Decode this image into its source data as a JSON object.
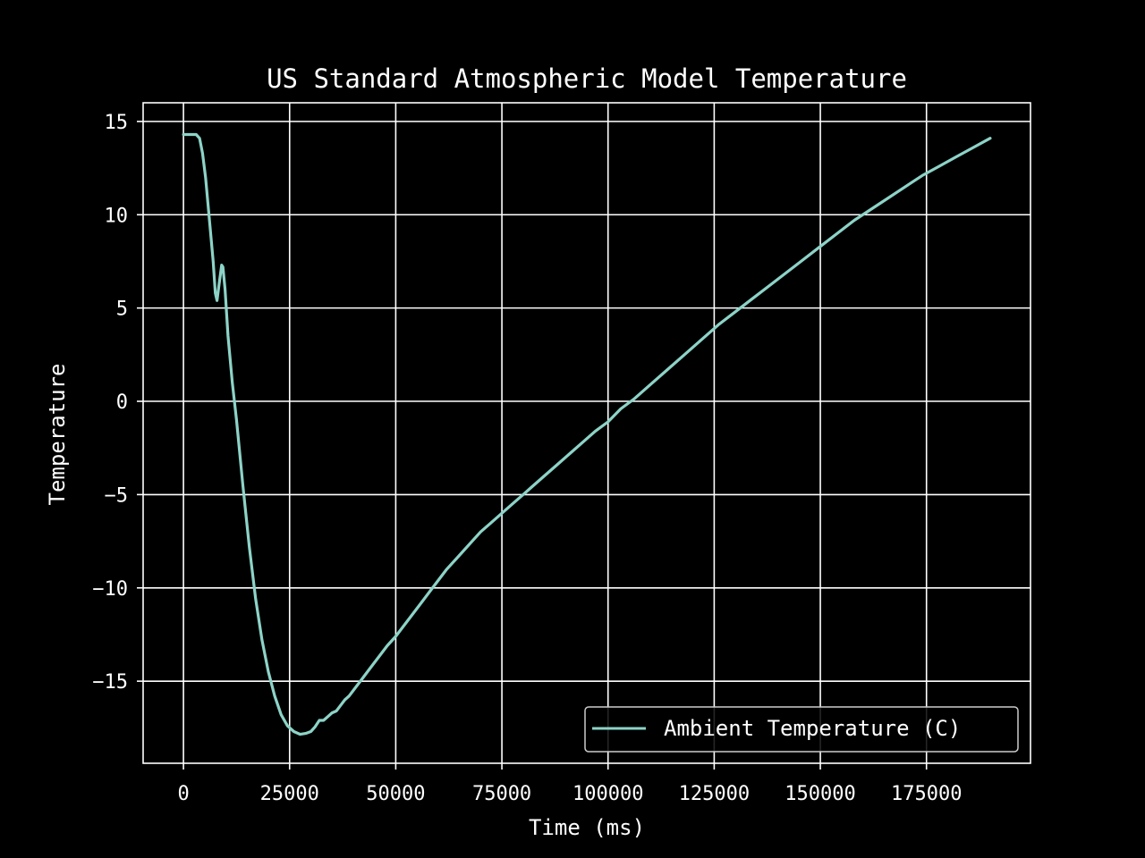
{
  "chart_data": {
    "type": "line",
    "title": "US Standard Atmospheric Model Temperature",
    "xlabel": "Time (ms)",
    "ylabel": "Temperature",
    "xlim": [
      -9500,
      199500
    ],
    "ylim": [
      -19.4,
      16
    ],
    "xticks": [
      0,
      25000,
      50000,
      75000,
      100000,
      125000,
      150000,
      175000
    ],
    "xtick_labels": [
      "0",
      "25000",
      "50000",
      "75000",
      "100000",
      "125000",
      "150000",
      "175000"
    ],
    "yticks": [
      15,
      10,
      5,
      0,
      -5,
      -10,
      -15
    ],
    "ytick_labels": [
      "15",
      "10",
      "5",
      "0",
      "−5",
      "−10",
      "−15"
    ],
    "grid": true,
    "legend_position": "lower-right",
    "background_color": "#000000",
    "foreground_color": "#ffffff",
    "series": [
      {
        "name": "Ambient Temperature (C)",
        "color": "#8dd3c7",
        "x": [
          0,
          3000,
          3800,
          4500,
          5200,
          6000,
          7000,
          7500,
          7900,
          8400,
          9000,
          9300,
          9800,
          10500,
          11500,
          12500,
          14000,
          15500,
          17000,
          18500,
          20000,
          21500,
          23000,
          24500,
          26000,
          27500,
          28800,
          30000,
          31000,
          32000,
          33000,
          34000,
          35000,
          36000,
          37000,
          38000,
          39000,
          40000,
          42000,
          44000,
          46000,
          48000,
          50000,
          52000,
          54000,
          56000,
          58000,
          60000,
          62000,
          64000,
          66000,
          68000,
          70000,
          72000,
          74000,
          76000,
          78000,
          80000,
          82000,
          85000,
          88000,
          91000,
          94000,
          97000,
          100000,
          103000,
          106000,
          110000,
          114000,
          118000,
          122000,
          126000,
          130000,
          134000,
          138000,
          142000,
          146000,
          150000,
          154000,
          158000,
          162000,
          166000,
          170000,
          174000,
          178000,
          182000,
          186000,
          190000
        ],
        "values": [
          14.3,
          14.3,
          14.1,
          13.3,
          12.0,
          10.0,
          7.5,
          5.8,
          5.4,
          6.3,
          7.3,
          7.2,
          6.0,
          3.5,
          1.0,
          -1.0,
          -4.5,
          -7.8,
          -10.6,
          -12.8,
          -14.5,
          -15.8,
          -16.8,
          -17.4,
          -17.7,
          -17.85,
          -17.8,
          -17.7,
          -17.45,
          -17.1,
          -17.1,
          -16.9,
          -16.7,
          -16.6,
          -16.3,
          -16.0,
          -15.8,
          -15.5,
          -14.9,
          -14.3,
          -13.7,
          -13.1,
          -12.6,
          -12.0,
          -11.4,
          -10.8,
          -10.2,
          -9.6,
          -9.0,
          -8.5,
          -8.0,
          -7.5,
          -7.0,
          -6.6,
          -6.2,
          -5.8,
          -5.4,
          -5.0,
          -4.6,
          -4.0,
          -3.4,
          -2.8,
          -2.2,
          -1.6,
          -1.1,
          -0.4,
          0.1,
          0.9,
          1.7,
          2.5,
          3.3,
          4.1,
          4.8,
          5.5,
          6.2,
          6.9,
          7.6,
          8.3,
          9.0,
          9.7,
          10.3,
          10.9,
          11.5,
          12.1,
          12.6,
          13.1,
          13.6,
          14.1
        ]
      }
    ]
  }
}
